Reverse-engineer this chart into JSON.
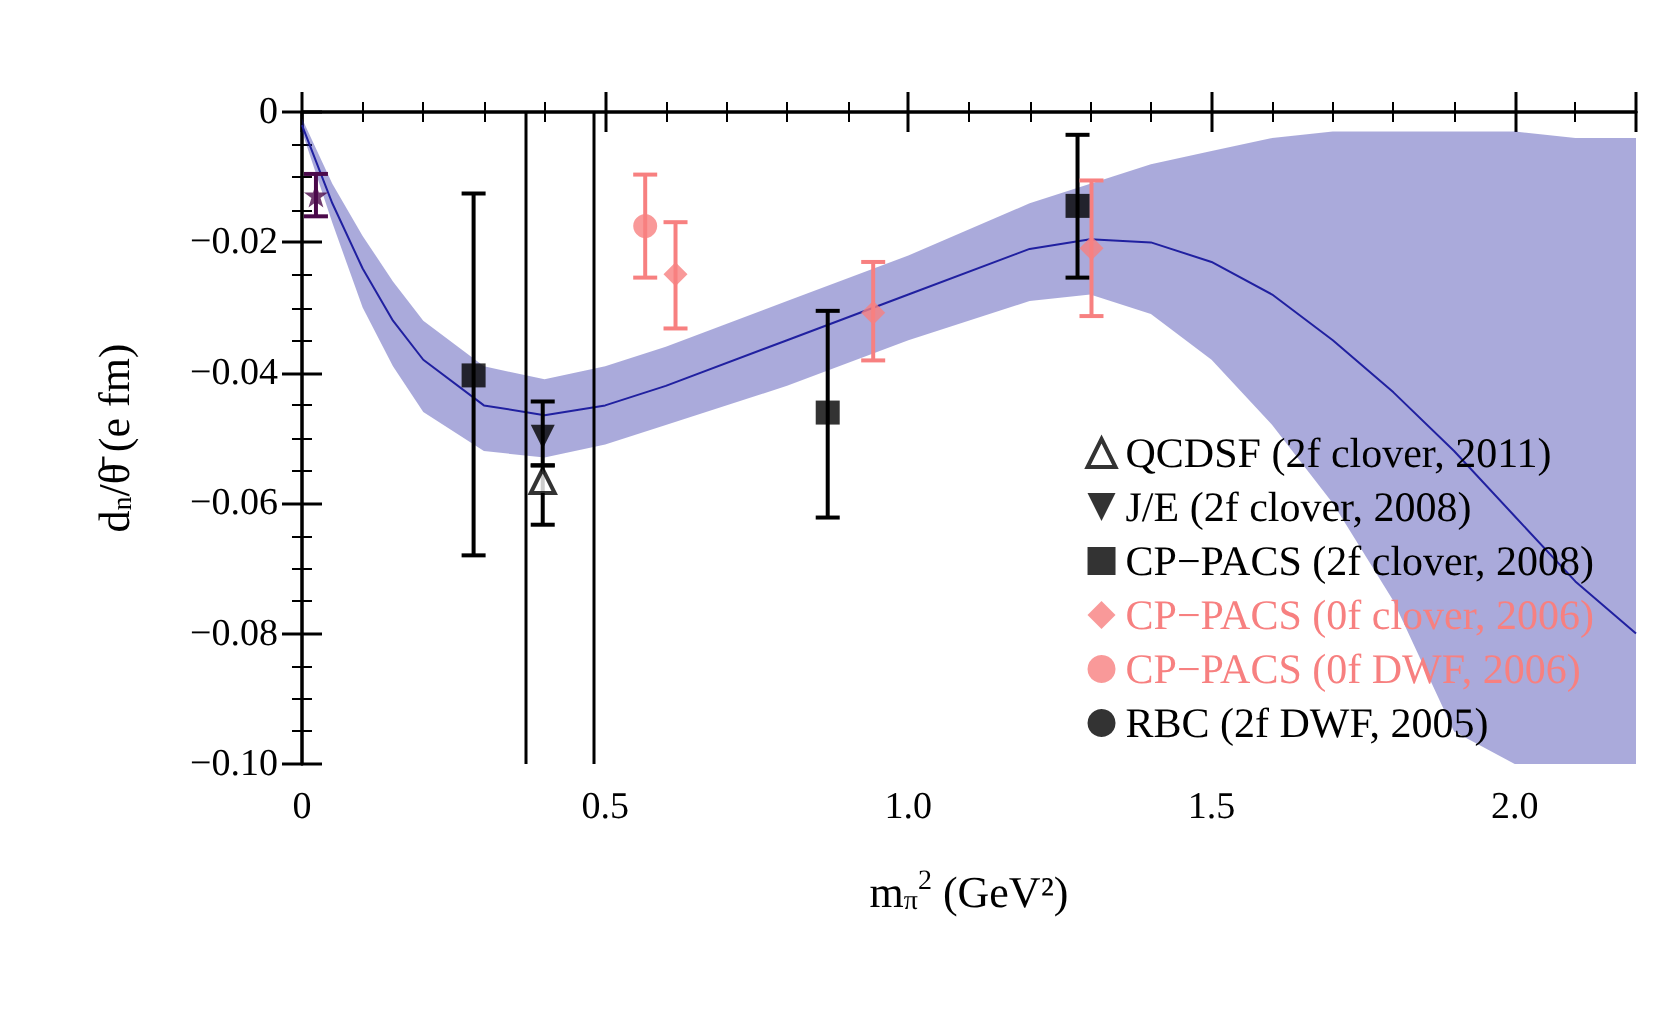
{
  "chart_data": {
    "type": "scatter",
    "xlabel": "m$_{π}$$^{2}$ (GeV²)",
    "ylabel": "d$_{n}$/θ̄ (e fm)",
    "xlim": [
      0,
      2.2
    ],
    "xticks": [
      0,
      0.5,
      {
        "value": 1.0,
        "label": "1.0"
      },
      1.5,
      {
        "value": 2.0,
        "label": "2.0"
      }
    ],
    "ylim": [
      -0.1,
      0
    ],
    "yticks": [
      {
        "value": -0.1,
        "label": "−0.10"
      },
      {
        "value": -0.08,
        "label": "−0.08"
      },
      {
        "value": -0.06,
        "label": "−0.06"
      },
      {
        "value": -0.04,
        "label": "−0.04"
      },
      {
        "value": -0.02,
        "label": "−0.02"
      },
      0
    ],
    "grid": false,
    "legend": "bottom right",
    "ref_lines": [
      {
        "axis": "x",
        "value": 0.37,
        "color": "#000000"
      },
      {
        "axis": "x",
        "value": 0.485,
        "color": "#000000"
      }
    ],
    "series": [
      {
        "type": "line",
        "color": "#2020a0",
        "marker": "none",
        "x": [
          0,
          0.05,
          0.1,
          0.15,
          0.2,
          0.3,
          0.4,
          0.5,
          0.6,
          0.8,
          1.0,
          1.2,
          1.3,
          1.4,
          1.5,
          1.6,
          1.7,
          1.8,
          1.9,
          2.0,
          2.1,
          2.2
        ],
        "values": [
          -0.002,
          -0.014,
          -0.024,
          -0.032,
          -0.038,
          -0.045,
          -0.0465,
          -0.045,
          -0.042,
          -0.035,
          -0.028,
          -0.021,
          -0.0195,
          -0.02,
          -0.023,
          -0.028,
          -0.035,
          -0.043,
          -0.052,
          -0.062,
          -0.072,
          -0.08
        ],
        "lower": [
          -0.003,
          -0.017,
          -0.03,
          -0.039,
          -0.046,
          -0.052,
          -0.053,
          -0.051,
          -0.048,
          -0.042,
          -0.035,
          -0.029,
          -0.028,
          -0.031,
          -0.038,
          -0.048,
          -0.06,
          -0.075,
          -0.095,
          -0.1,
          -0.1,
          -0.1
        ],
        "upper": [
          -0.001,
          -0.011,
          -0.019,
          -0.026,
          -0.032,
          -0.039,
          -0.041,
          -0.039,
          -0.036,
          -0.029,
          -0.022,
          -0.014,
          -0.011,
          -0.008,
          -0.006,
          -0.004,
          -0.003,
          -0.003,
          -0.003,
          -0.003,
          -0.004,
          -0.004
        ]
      },
      {
        "color": "#4b0a4b",
        "marker": "star",
        "x": [
          0.023
        ],
        "values": [
          -0.0128
        ],
        "errors": [
          [
            -0.016,
            -0.0095
          ]
        ]
      },
      {
        "name": "QCDSF (2f clover, 2011)",
        "color": "#000000",
        "marker": "triangle-open",
        "x": [
          0.397
        ],
        "values": [
          -0.0566
        ],
        "errors": [
          [
            -0.0633,
            -0.0542
          ]
        ]
      },
      {
        "name": "J/E (2f clover, 2008)",
        "color": "#000000",
        "marker": "triangle-down",
        "x": [
          0.397
        ],
        "values": [
          -0.0498
        ],
        "errors": [
          [
            -0.0542,
            -0.0444
          ]
        ]
      },
      {
        "name": "CP−PACS (2f clover, 2008)",
        "color": "#000000",
        "marker": "square",
        "x": [
          0.283,
          0.867,
          1.279
        ],
        "values": [
          -0.0404,
          -0.0461,
          -0.0144
        ],
        "errors": [
          [
            -0.068,
            -0.0125
          ],
          [
            -0.0622,
            -0.0305
          ],
          [
            -0.0254,
            -0.0035
          ]
        ]
      },
      {
        "name": "CP−PACS (0f clover, 2006)",
        "color": "#f78080",
        "marker": "diamond",
        "x": [
          0.616,
          0.942,
          1.302
        ],
        "values": [
          -0.0249,
          -0.0308,
          -0.0209
        ],
        "errors": [
          [
            -0.0332,
            -0.0169
          ],
          [
            -0.0381,
            -0.023
          ],
          [
            -0.0313,
            -0.0105
          ]
        ]
      },
      {
        "name": "CP−PACS (0f DWF, 2006)",
        "color": "#f78080",
        "marker": "circle",
        "x": [
          0.566
        ],
        "values": [
          -0.0175
        ],
        "errors": [
          [
            -0.0254,
            -0.0096
          ]
        ]
      },
      {
        "name": "RBC (2f DWF, 2005)",
        "color": "#000000",
        "marker": "circle"
      }
    ]
  }
}
